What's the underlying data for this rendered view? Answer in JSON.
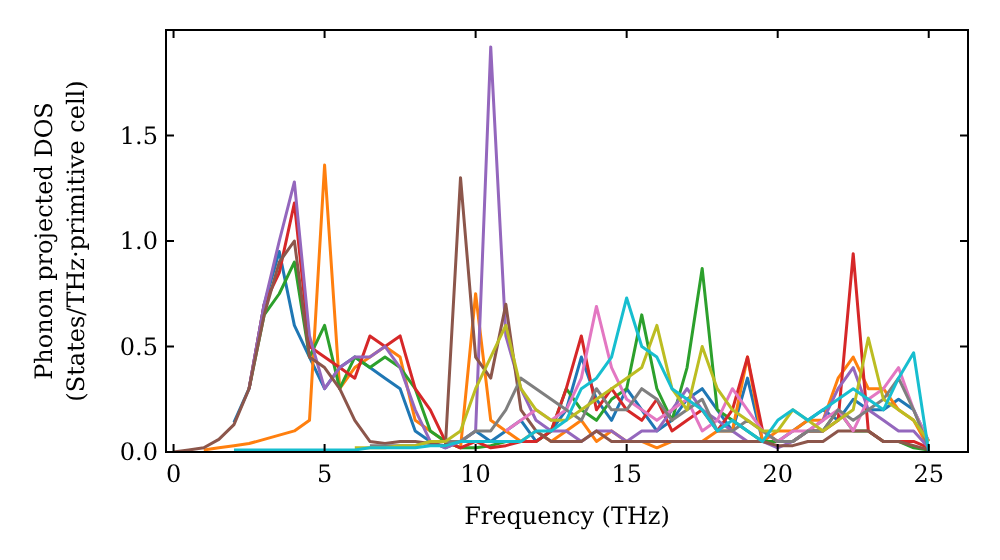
{
  "chart_data": {
    "type": "line",
    "xlabel": "Frequency (THz)",
    "ylabel": "Phonon projected DOS\n(States/THz·primitive cell)",
    "x": [
      0,
      0.5,
      1,
      1.5,
      2,
      2.5,
      3,
      3.5,
      4,
      4.5,
      5,
      5.5,
      6,
      6.5,
      7,
      7.5,
      8,
      8.5,
      9,
      9.5,
      10,
      10.5,
      11,
      11.5,
      12,
      12.5,
      13,
      13.5,
      14,
      14.5,
      15,
      15.5,
      16,
      16.5,
      17,
      17.5,
      18,
      18.5,
      19,
      19.5,
      20,
      20.5,
      21,
      21.5,
      22,
      22.5,
      23,
      23.5,
      24,
      24.5,
      25
    ],
    "xlim": [
      -0.25,
      26.3
    ],
    "ylim": [
      0,
      2.0
    ],
    "xticks": [
      0,
      5,
      10,
      15,
      20,
      25
    ],
    "yticks": [
      {
        "value": 0,
        "label": "0.0"
      },
      {
        "value": 0.5,
        "label": "0.5"
      },
      {
        "value": 1,
        "label": "1.0"
      },
      {
        "value": 1.5,
        "label": "1.5"
      }
    ],
    "grid": false,
    "line_style": "solid",
    "marker": "none",
    "series": [
      {
        "color": "#1f77b4",
        "values": [
          null,
          null,
          null,
          null,
          0.14,
          0.3,
          0.7,
          0.95,
          0.6,
          0.45,
          0.3,
          0.4,
          0.45,
          0.4,
          0.35,
          0.3,
          0.1,
          0.05,
          0.02,
          0.05,
          0.1,
          0.05,
          0.1,
          0.15,
          0.05,
          0.1,
          0.2,
          0.45,
          0.25,
          0.15,
          0.3,
          0.2,
          0.1,
          0.15,
          0.25,
          0.3,
          0.2,
          0.1,
          0.35,
          0.05,
          0.05,
          0.1,
          0.15,
          0.2,
          0.15,
          0.25,
          0.2,
          0.2,
          0.25,
          0.2,
          0.05
        ]
      },
      {
        "color": "#ff7f0e",
        "values": [
          null,
          null,
          0.01,
          0.02,
          0.03,
          0.04,
          0.06,
          0.08,
          0.1,
          0.15,
          1.36,
          0.3,
          0.4,
          0.45,
          0.5,
          0.45,
          0.15,
          0.1,
          0.05,
          0.02,
          0.75,
          0.15,
          0.1,
          0.05,
          0.1,
          0.05,
          0.1,
          0.15,
          0.05,
          0.1,
          0.05,
          0.05,
          0.02,
          0.05,
          0.05,
          0.05,
          0.1,
          0.1,
          0.45,
          0.05,
          0.1,
          0.1,
          0.15,
          0.15,
          0.35,
          0.45,
          0.3,
          0.3,
          0.2,
          0.15,
          0.02
        ]
      },
      {
        "color": "#2ca02c",
        "values": [
          null,
          null,
          null,
          null,
          null,
          0.3,
          0.65,
          0.75,
          0.9,
          0.45,
          0.6,
          0.3,
          0.45,
          0.4,
          0.45,
          0.4,
          0.3,
          0.1,
          0.05,
          0.02,
          0.02,
          0.03,
          0.05,
          0.05,
          0.05,
          0.1,
          0.3,
          0.2,
          0.15,
          0.25,
          0.3,
          0.65,
          0.3,
          0.15,
          0.4,
          0.87,
          0.2,
          0.15,
          0.1,
          0.05,
          0.05,
          0.05,
          0.1,
          0.1,
          0.2,
          0.1,
          0.1,
          0.05,
          0.05,
          0.02,
          0.01
        ]
      },
      {
        "color": "#d62728",
        "values": [
          null,
          null,
          null,
          null,
          null,
          0.3,
          0.7,
          0.85,
          1.18,
          0.5,
          0.45,
          0.4,
          0.35,
          0.55,
          0.5,
          0.55,
          0.3,
          0.2,
          0.05,
          0.02,
          0.05,
          0.02,
          0.03,
          0.05,
          0.05,
          0.1,
          0.3,
          0.55,
          0.2,
          0.3,
          0.2,
          0.15,
          0.25,
          0.1,
          0.15,
          0.2,
          0.1,
          0.2,
          0.45,
          0.1,
          0.05,
          0.05,
          0.1,
          0.1,
          0.15,
          0.94,
          0.1,
          0.05,
          0.05,
          0.05,
          0.02
        ]
      },
      {
        "color": "#9467bd",
        "values": [
          null,
          null,
          null,
          null,
          null,
          0.3,
          0.7,
          1.0,
          1.28,
          0.55,
          0.3,
          0.4,
          0.45,
          0.45,
          0.5,
          0.4,
          0.2,
          0.05,
          0.02,
          0.05,
          0.1,
          1.92,
          0.55,
          0.3,
          0.15,
          0.1,
          0.1,
          0.05,
          0.1,
          0.1,
          0.05,
          0.1,
          0.1,
          0.2,
          0.3,
          0.2,
          0.15,
          0.1,
          0.05,
          0.05,
          0.02,
          0.05,
          0.1,
          0.15,
          0.3,
          0.4,
          0.2,
          0.15,
          0.1,
          0.1,
          0.02
        ]
      },
      {
        "color": "#8c564b",
        "values": [
          0,
          0.01,
          0.02,
          0.06,
          0.13,
          0.3,
          0.65,
          0.9,
          1.0,
          0.45,
          0.4,
          0.3,
          0.15,
          0.05,
          0.04,
          0.05,
          0.05,
          0.04,
          0.03,
          1.3,
          0.45,
          0.35,
          0.7,
          0.2,
          0.1,
          0.05,
          0.05,
          0.05,
          0.1,
          0.05,
          0.05,
          0.05,
          0.05,
          0.05,
          0.05,
          0.05,
          0.05,
          0.05,
          0.05,
          0.05,
          0.03,
          0.03,
          0.05,
          0.05,
          0.1,
          0.1,
          0.1,
          0.05,
          0.05,
          0.03,
          0.01
        ]
      },
      {
        "color": "#e377c2",
        "values": [
          null,
          null,
          null,
          null,
          null,
          null,
          null,
          null,
          null,
          null,
          null,
          null,
          null,
          null,
          null,
          null,
          null,
          null,
          null,
          null,
          null,
          null,
          0.1,
          0.15,
          0.2,
          0.15,
          0.2,
          0.35,
          0.69,
          0.4,
          0.25,
          0.2,
          0.15,
          0.2,
          0.25,
          0.1,
          0.15,
          0.3,
          0.2,
          0.1,
          0.05,
          0.1,
          0.1,
          0.15,
          0.2,
          0.1,
          0.25,
          0.3,
          0.4,
          0.2,
          0.05
        ]
      },
      {
        "color": "#7f7f7f",
        "values": [
          null,
          null,
          null,
          null,
          null,
          null,
          null,
          null,
          null,
          null,
          null,
          null,
          null,
          0.03,
          0.03,
          0.03,
          0.03,
          0.05,
          0.05,
          0.05,
          0.1,
          0.1,
          0.2,
          0.35,
          0.3,
          0.25,
          0.2,
          0.15,
          0.3,
          0.2,
          0.2,
          0.3,
          0.25,
          0.15,
          0.2,
          0.25,
          0.1,
          0.1,
          0.15,
          0.1,
          0.05,
          0.05,
          0.1,
          0.1,
          0.2,
          0.15,
          0.2,
          0.25,
          0.35,
          0.2,
          0.02
        ]
      },
      {
        "color": "#bcbd22",
        "values": [
          null,
          null,
          null,
          null,
          null,
          null,
          null,
          null,
          null,
          null,
          null,
          null,
          0.02,
          0.02,
          0.02,
          0.03,
          0.03,
          0.05,
          0.05,
          0.1,
          0.3,
          0.45,
          0.6,
          0.3,
          0.2,
          0.15,
          0.15,
          0.2,
          0.25,
          0.3,
          0.35,
          0.4,
          0.6,
          0.3,
          0.2,
          0.5,
          0.3,
          0.2,
          0.15,
          0.1,
          0.1,
          0.2,
          0.15,
          0.1,
          0.15,
          0.2,
          0.54,
          0.25,
          0.2,
          0.15,
          0.05
        ]
      },
      {
        "color": "#17becf",
        "values": [
          null,
          null,
          null,
          null,
          0.01,
          0.01,
          0.01,
          0.01,
          0.01,
          0.01,
          0.01,
          0.01,
          0.01,
          0.02,
          0.02,
          0.02,
          0.02,
          0.03,
          0.03,
          0.05,
          0.05,
          0.05,
          0.05,
          0.05,
          0.1,
          0.1,
          0.15,
          0.3,
          0.35,
          0.45,
          0.73,
          0.5,
          0.45,
          0.3,
          0.25,
          0.2,
          0.1,
          0.15,
          0.1,
          0.05,
          0.15,
          0.2,
          0.15,
          0.2,
          0.25,
          0.3,
          0.25,
          0.2,
          0.35,
          0.47,
          0
        ]
      }
    ]
  }
}
